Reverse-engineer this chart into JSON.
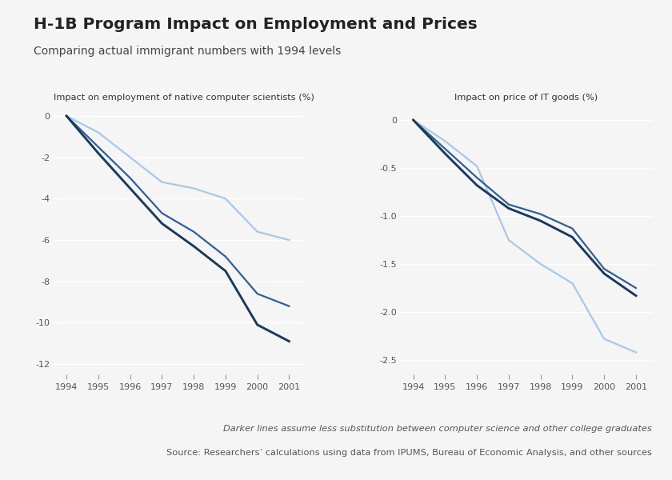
{
  "title": "H-1B Program Impact on Employment and Prices",
  "subtitle": "Comparing actual immigrant numbers with 1994 levels",
  "footnote1": "Darker lines assume less substitution between computer science and other college graduates",
  "footnote2": "Source: Researchers’ calculations using data from IPUMS, Bureau of Economic Analysis, and other sources",
  "left_title": "Impact on employment of native computer scientists (%)",
  "right_title": "Impact on price of IT goods (%)",
  "years": [
    1994,
    1995,
    1996,
    1997,
    1998,
    1999,
    2000,
    2001
  ],
  "left_dark1": [
    0,
    -1.8,
    -3.5,
    -5.2,
    -6.3,
    -7.5,
    -10.1,
    -10.9
  ],
  "left_dark2": [
    0,
    -1.5,
    -3.0,
    -4.7,
    -5.6,
    -6.8,
    -8.6,
    -9.2
  ],
  "left_light": [
    0,
    -0.8,
    -2.0,
    -3.2,
    -3.5,
    -4.0,
    -5.6,
    -6.0
  ],
  "right_dark1": [
    0,
    -0.35,
    -0.68,
    -0.92,
    -1.05,
    -1.22,
    -1.6,
    -1.83
  ],
  "right_dark2": [
    0,
    -0.3,
    -0.6,
    -0.88,
    -0.98,
    -1.13,
    -1.55,
    -1.75
  ],
  "right_light": [
    0,
    -0.22,
    -0.48,
    -1.25,
    -1.5,
    -1.7,
    -2.28,
    -2.42
  ],
  "color_dark1": "#1a3a5c",
  "color_dark2": "#2e6095",
  "color_light": "#a8c8e8",
  "left_ylim": [
    -12.5,
    0.5
  ],
  "left_yticks": [
    0,
    -2,
    -4,
    -6,
    -8,
    -10,
    -12
  ],
  "right_ylim": [
    -2.65,
    0.15
  ],
  "right_yticks": [
    0,
    -0.5,
    -1.0,
    -1.5,
    -2.0,
    -2.5
  ],
  "bg_color": "#f5f5f5",
  "line_width": 1.6
}
